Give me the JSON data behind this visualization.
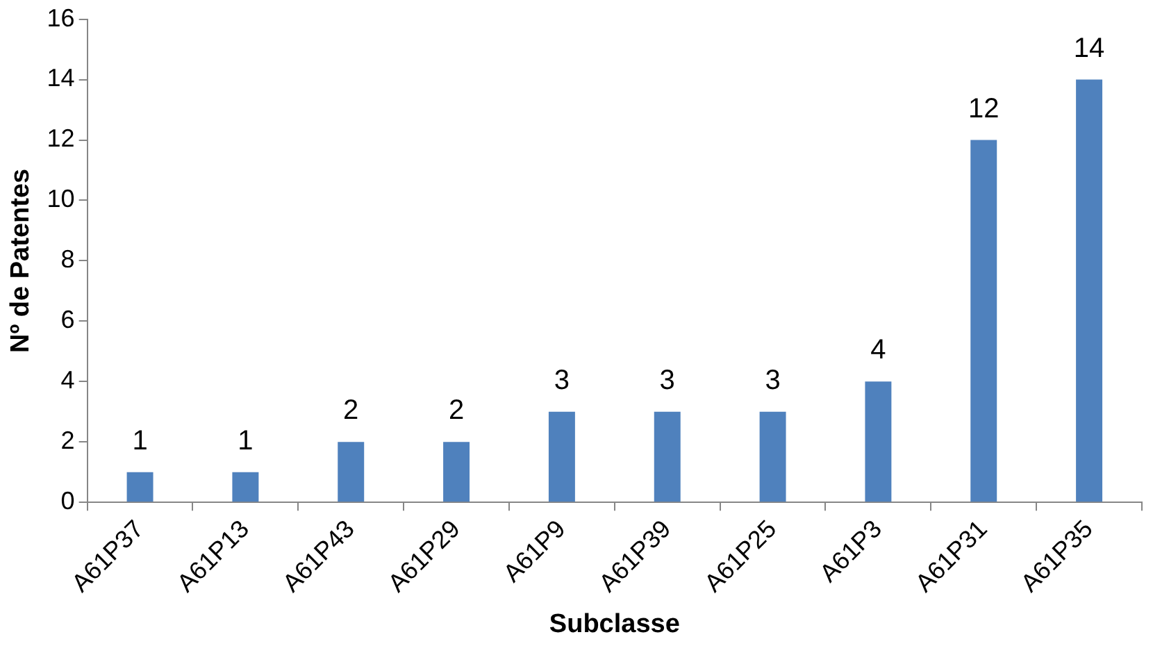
{
  "chart_data": {
    "type": "bar",
    "xlabel": "Subclasse",
    "ylabel": "Nº de Patentes",
    "categories": [
      "A61P37",
      "A61P13",
      "A61P43",
      "A61P29",
      "A61P9",
      "A61P39",
      "A61P25",
      "A61P3",
      "A61P31",
      "A61P35"
    ],
    "values": [
      1,
      1,
      2,
      2,
      3,
      3,
      3,
      4,
      12,
      14
    ],
    "color": "#4f81bd",
    "ylim": [
      0,
      16
    ],
    "yticks": [
      0,
      2,
      4,
      6,
      8,
      10,
      12,
      14,
      16
    ],
    "grid": false,
    "data_labels": true
  }
}
